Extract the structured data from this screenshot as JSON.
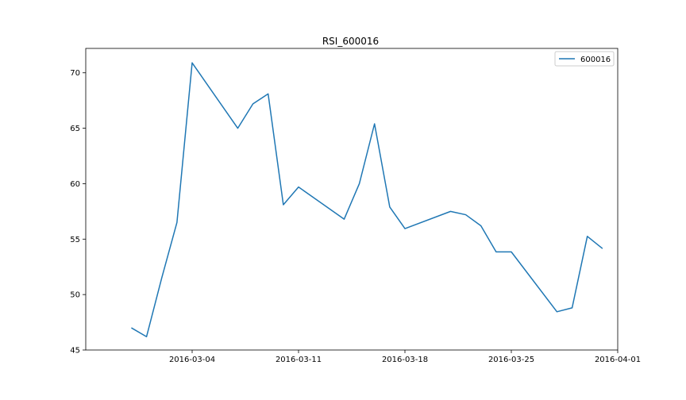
{
  "chart_data": {
    "type": "line",
    "title": "RSI_600016",
    "xlabel": "",
    "ylabel": "",
    "x_axis_type": "date",
    "xlim": [
      "2016-02-26",
      "2016-04-01"
    ],
    "ylim": [
      45,
      72.2
    ],
    "xticks": [
      "2016-03-04",
      "2016-03-11",
      "2016-03-18",
      "2016-03-25",
      "2016-04-01"
    ],
    "yticks": [
      45,
      50,
      55,
      60,
      65,
      70
    ],
    "grid": false,
    "legend_position": "top-right",
    "series": [
      {
        "name": "600016",
        "color": "#1f77b4",
        "x": [
          "2016-02-29",
          "2016-03-01",
          "2016-03-02",
          "2016-03-03",
          "2016-03-04",
          "2016-03-07",
          "2016-03-08",
          "2016-03-09",
          "2016-03-10",
          "2016-03-11",
          "2016-03-14",
          "2016-03-15",
          "2016-03-16",
          "2016-03-17",
          "2016-03-18",
          "2016-03-21",
          "2016-03-22",
          "2016-03-23",
          "2016-03-24",
          "2016-03-25",
          "2016-03-28",
          "2016-03-29",
          "2016-03-30",
          "2016-03-31"
        ],
        "values": [
          47.0,
          46.2,
          51.5,
          56.5,
          70.9,
          65.0,
          67.2,
          68.1,
          58.1,
          59.7,
          56.8,
          60.0,
          65.4,
          57.9,
          55.95,
          57.5,
          57.2,
          56.2,
          53.85,
          53.85,
          48.45,
          48.8,
          55.25,
          54.15
        ]
      }
    ]
  }
}
